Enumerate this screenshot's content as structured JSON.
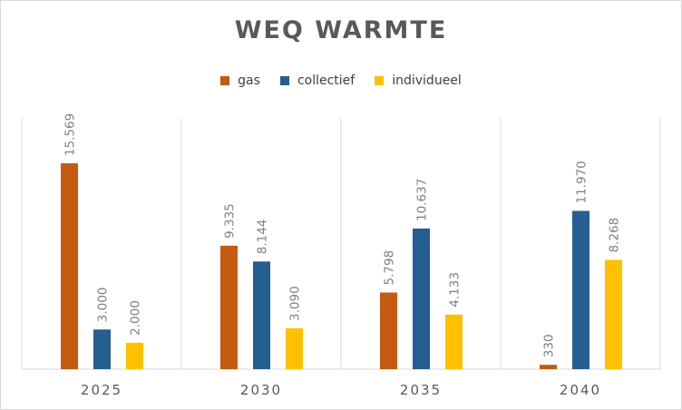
{
  "chart_data": {
    "type": "bar",
    "title": "WEQ WARMTE",
    "categories": [
      "2025",
      "2030",
      "2035",
      "2040"
    ],
    "series": [
      {
        "name": "gas",
        "color": "#c55a11",
        "values": [
          15569,
          9335,
          5798,
          330
        ],
        "labels": [
          "15.569",
          "9.335",
          "5.798",
          "330"
        ]
      },
      {
        "name": "collectief",
        "color": "#255e91",
        "values": [
          3000,
          8144,
          10637,
          11970
        ],
        "labels": [
          "3.000",
          "8.144",
          "10.637",
          "11.970"
        ]
      },
      {
        "name": "individueel",
        "color": "#ffc000",
        "values": [
          2000,
          3090,
          4133,
          8268
        ],
        "labels": [
          "2.000",
          "3.090",
          "4.133",
          "8.268"
        ]
      }
    ],
    "ylim": [
      0,
      19000
    ],
    "grid": "vertical category separators",
    "legend_position": "top",
    "data_labels": "rotated vertical above bars"
  }
}
